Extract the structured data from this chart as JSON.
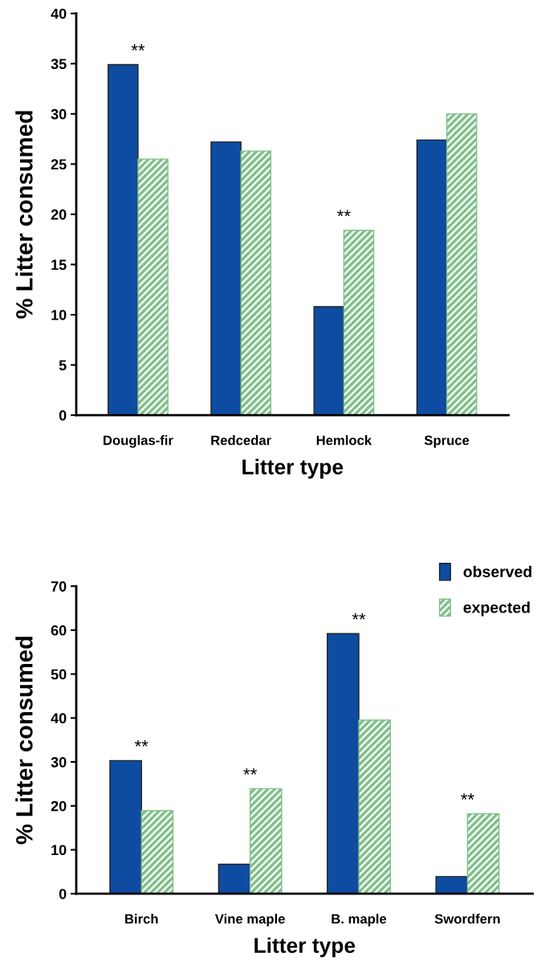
{
  "chart_data": [
    {
      "type": "bar",
      "xlabel": "Litter type",
      "ylabel": "% Litter consumed",
      "categories": [
        "Douglas-fir",
        "Redcedar",
        "Hemlock",
        "Spruce"
      ],
      "series": [
        {
          "color": "#0d4ca1",
          "values": [
            34.9,
            27.2,
            10.8,
            27.4
          ]
        },
        {
          "color": "#7fc08a",
          "values": [
            25.5,
            26.3,
            18.4,
            30.0
          ]
        }
      ],
      "ylim": [
        0,
        40
      ],
      "yticks": [
        0,
        5,
        10,
        15,
        20,
        25,
        30,
        35,
        40
      ],
      "grid": false,
      "legend": false,
      "annotations": [
        {
          "text": "**",
          "x": "Douglas-fir",
          "y": 34.9
        },
        {
          "text": "**",
          "x": "Hemlock",
          "y": 18.4
        }
      ]
    },
    {
      "type": "bar",
      "xlabel": "Litter type",
      "ylabel": "% Litter consumed",
      "categories": [
        "Birch",
        "Vine maple",
        "B. maple",
        "Swordfern"
      ],
      "series": [
        {
          "name": "observed",
          "color": "#0d4ca1",
          "values": [
            30.3,
            6.7,
            59.2,
            3.9
          ]
        },
        {
          "name": "expected",
          "color": "#7fc08a",
          "values": [
            18.9,
            23.9,
            39.5,
            18.2
          ]
        }
      ],
      "ylim": [
        0,
        70
      ],
      "yticks": [
        0,
        10,
        20,
        30,
        40,
        50,
        60,
        70
      ],
      "grid": false,
      "legend": "top right",
      "annotations": [
        {
          "text": "**",
          "x": "Birch",
          "y": 30.3
        },
        {
          "text": "**",
          "x": "Vine maple",
          "y": 23.9
        },
        {
          "text": "**",
          "x": "B. maple",
          "y": 59.2
        },
        {
          "text": "**",
          "x": "Swordfern",
          "y": 18.2
        }
      ]
    }
  ]
}
